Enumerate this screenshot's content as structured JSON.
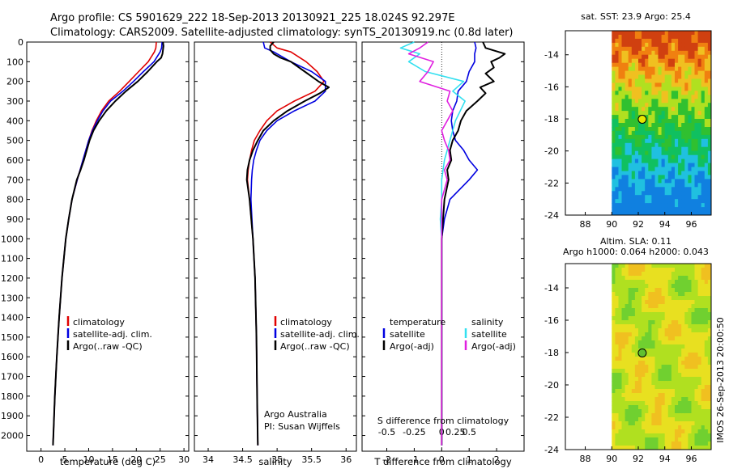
{
  "header": {
    "line1": "Argo profile: CS 5901629_222 18-Sep-2013 20130921_225 18.024S 92.297E",
    "line2": "Climatology: CARS2009. Satellite-adjusted climatology: synTS_20130919.nc (0.8d later)"
  },
  "colors": {
    "climatology": "#e00000",
    "satellite": "#0000e0",
    "argo": "#000000",
    "satellite_sal": "#33e0f0",
    "argo_sal": "#e020e0"
  },
  "chart_data": [
    {
      "type": "line",
      "xlabel": "temperature (deg C)",
      "ylabel": "",
      "xlim": [
        -3,
        31
      ],
      "ylim": [
        2080,
        0
      ],
      "xticks": [
        0,
        5,
        10,
        15,
        20,
        25,
        30
      ],
      "yticks": [
        0,
        100,
        200,
        300,
        400,
        500,
        600,
        700,
        800,
        900,
        1000,
        1100,
        1200,
        1300,
        1400,
        1500,
        1600,
        1700,
        1800,
        1900,
        2000
      ],
      "legend": [
        "climatology",
        "satellite-adj. clim.",
        "Argo(..raw -QC)"
      ],
      "series": [
        {
          "name": "climatology",
          "color": "#e00000",
          "depth": [
            0,
            30,
            50,
            100,
            150,
            200,
            250,
            300,
            350,
            400,
            450,
            500,
            600,
            700,
            800,
            900,
            1000,
            1200,
            1400,
            1600,
            1800,
            2000,
            2050
          ],
          "values": [
            24.2,
            24.1,
            23.8,
            22.5,
            20.5,
            18.5,
            16.5,
            14.2,
            12.7,
            11.6,
            10.7,
            10.0,
            8.8,
            7.6,
            6.5,
            5.8,
            5.2,
            4.4,
            3.8,
            3.3,
            2.9,
            2.6,
            2.5
          ]
        },
        {
          "name": "satellite-adj. clim.",
          "color": "#0000e0",
          "depth": [
            0,
            30,
            50,
            100,
            150,
            200,
            250,
            300,
            350,
            400,
            450,
            500,
            600,
            700,
            800,
            900,
            1000,
            1200,
            1400,
            1600,
            1800,
            2000,
            2050
          ],
          "values": [
            25.4,
            25.3,
            25.0,
            23.7,
            21.5,
            19.4,
            17.2,
            14.6,
            13.0,
            11.8,
            10.8,
            10.0,
            8.8,
            7.6,
            6.5,
            5.8,
            5.2,
            4.4,
            3.8,
            3.3,
            2.9,
            2.6,
            2.5
          ]
        },
        {
          "name": "Argo(..raw -QC)",
          "color": "#000000",
          "depth": [
            0,
            20,
            40,
            60,
            80,
            100,
            150,
            200,
            250,
            300,
            350,
            400,
            450,
            500,
            550,
            600,
            650,
            700,
            800,
            900,
            1000,
            1200,
            1400,
            1600,
            1800,
            2000,
            2050
          ],
          "values": [
            25.6,
            25.7,
            25.6,
            25.5,
            25.2,
            24.3,
            22.4,
            20.3,
            17.8,
            15.6,
            13.7,
            12.2,
            11.0,
            10.2,
            9.6,
            9.0,
            8.3,
            7.5,
            6.5,
            5.8,
            5.2,
            4.4,
            3.8,
            3.3,
            2.9,
            2.6,
            2.5
          ]
        }
      ]
    },
    {
      "type": "line",
      "xlabel": "salinity",
      "ylabel": "",
      "xlim": [
        33.8,
        36.15
      ],
      "ylim": [
        2080,
        0
      ],
      "xticks": [
        34,
        34.5,
        35,
        35.5,
        36
      ],
      "legend": [
        "climatology",
        "satellite-adj. clim.",
        "Argo(..raw -QC)"
      ],
      "annotation": [
        "Argo Australia",
        "PI: Susan Wijffels"
      ],
      "series": [
        {
          "name": "climatology",
          "color": "#e00000",
          "depth": [
            0,
            30,
            50,
            100,
            150,
            200,
            250,
            300,
            350,
            400,
            450,
            500,
            550,
            600,
            650,
            700,
            800,
            1000,
            1200,
            1500,
            1800,
            2050
          ],
          "values": [
            34.9,
            35.0,
            35.2,
            35.42,
            35.58,
            35.68,
            35.55,
            35.25,
            35.0,
            34.85,
            34.75,
            34.67,
            34.63,
            34.6,
            34.58,
            34.57,
            34.6,
            34.65,
            34.68,
            34.7,
            34.71,
            34.72
          ]
        },
        {
          "name": "satellite-adj. clim.",
          "color": "#0000e0",
          "depth": [
            0,
            30,
            50,
            100,
            150,
            200,
            250,
            300,
            350,
            400,
            450,
            500,
            550,
            600,
            650,
            700,
            800,
            1000,
            1200,
            1500,
            1800,
            2050
          ],
          "values": [
            34.8,
            34.82,
            34.95,
            35.2,
            35.5,
            35.7,
            35.7,
            35.55,
            35.25,
            35.0,
            34.85,
            34.75,
            34.7,
            34.66,
            34.64,
            34.63,
            34.62,
            34.65,
            34.68,
            34.7,
            34.71,
            34.72
          ]
        },
        {
          "name": "Argo(..raw -QC)",
          "color": "#000000",
          "depth": [
            0,
            20,
            40,
            60,
            80,
            100,
            150,
            200,
            230,
            260,
            300,
            350,
            400,
            450,
            500,
            550,
            600,
            650,
            700,
            750,
            800,
            1000,
            1200,
            1500,
            1800,
            2050
          ],
          "values": [
            34.95,
            34.9,
            34.9,
            34.95,
            35.05,
            35.2,
            35.4,
            35.6,
            35.75,
            35.62,
            35.4,
            35.15,
            34.95,
            34.8,
            34.72,
            34.65,
            34.6,
            34.57,
            34.56,
            34.58,
            34.6,
            34.65,
            34.68,
            34.7,
            34.71,
            34.72
          ]
        }
      ]
    },
    {
      "type": "line",
      "xlabel": "T difference from climatology",
      "top_axis_label": "S difference from climatology",
      "xlim": [
        -2.9,
        3.0
      ],
      "ylim": [
        2080,
        0
      ],
      "xticks": [
        -2,
        -1,
        0,
        1,
        2
      ],
      "top_ticks": [
        "-0.5",
        "-0.25",
        "0",
        "0.25",
        "0.5"
      ],
      "legend_temperature": {
        "title": "temperature",
        "items": [
          "satellite",
          "Argo(-adj)"
        ]
      },
      "legend_salinity": {
        "title": "salinity",
        "items": [
          "satellite",
          "Argo(-adj)"
        ]
      },
      "series": [
        {
          "name": "satellite",
          "color": "#0000e0",
          "depth": [
            0,
            30,
            60,
            100,
            150,
            200,
            250,
            300,
            350,
            400,
            450,
            500,
            550,
            600,
            650,
            700,
            800,
            900,
            1000,
            1500,
            2050
          ],
          "values": [
            1.2,
            1.25,
            1.2,
            1.2,
            1.0,
            0.9,
            0.6,
            0.55,
            0.4,
            0.35,
            0.4,
            0.5,
            0.8,
            1.0,
            1.3,
            1.0,
            0.3,
            0.1,
            0.0,
            0.0,
            0.0
          ]
        },
        {
          "name": "Argo(-adj)",
          "color": "#000000",
          "depth": [
            0,
            30,
            60,
            80,
            100,
            130,
            160,
            200,
            230,
            260,
            300,
            350,
            400,
            450,
            500,
            550,
            600,
            650,
            700,
            800,
            900,
            1000,
            1500,
            2050
          ],
          "values": [
            1.5,
            1.6,
            2.3,
            2.1,
            1.8,
            1.9,
            1.6,
            1.9,
            1.4,
            1.6,
            1.3,
            0.9,
            0.7,
            0.6,
            0.4,
            0.3,
            0.35,
            0.2,
            0.25,
            0.1,
            0.05,
            0.0,
            0.0,
            0.0
          ]
        },
        {
          "name": "satellite",
          "color": "#33e0f0",
          "depth": [
            0,
            30,
            60,
            100,
            150,
            200,
            250,
            300,
            400,
            500,
            600,
            700,
            800,
            900,
            1000,
            1500,
            2050
          ],
          "values": [
            -1.0,
            -1.5,
            -0.8,
            -1.2,
            -0.6,
            0.8,
            0.4,
            0.85,
            0.5,
            0.3,
            0.1,
            0.0,
            0.0,
            -0.05,
            0.0,
            0.0,
            0.0
          ]
        },
        {
          "name": "Argo(-adj)",
          "color": "#e020e0",
          "depth": [
            0,
            30,
            60,
            100,
            150,
            200,
            250,
            300,
            350,
            400,
            450,
            500,
            550,
            600,
            650,
            700,
            800,
            1000,
            1500,
            2050
          ],
          "values": [
            -0.5,
            -0.8,
            -1.2,
            -0.3,
            -0.5,
            -0.8,
            0.3,
            0.2,
            0.4,
            0.2,
            0.0,
            0.1,
            0.25,
            0.3,
            0.1,
            0.2,
            0.0,
            0.0,
            0.0,
            0.0
          ]
        }
      ]
    },
    {
      "type": "heatmap",
      "title": "sat. SST: 23.9  Argo: 25.4",
      "xlim": [
        86.5,
        97.5
      ],
      "ylim": [
        -24,
        -12.5
      ],
      "xticks": [
        "88",
        "90",
        "92",
        "94",
        "96"
      ],
      "yticks": [
        "-14",
        "-16",
        "-18",
        "-20",
        "-22",
        "-24"
      ],
      "data_start_lon": 90,
      "marker": {
        "lon": 92.297,
        "lat": -18.024
      }
    },
    {
      "type": "heatmap",
      "title_line1": "Altim. SLA: 0.11",
      "title_line2": "Argo h1000: 0.064 h2000: 0.043",
      "xlim": [
        86.5,
        97.5
      ],
      "ylim": [
        -24,
        -12.5
      ],
      "xticks": [
        "88",
        "90",
        "92",
        "94",
        "96"
      ],
      "yticks": [
        "-14",
        "-16",
        "-18",
        "-20",
        "-22",
        "-24"
      ],
      "data_start_lon": 90,
      "marker": {
        "lon": 92.297,
        "lat": -18.024
      }
    }
  ],
  "watermark": "IMOS 26-Sep-2013 20:00:50"
}
